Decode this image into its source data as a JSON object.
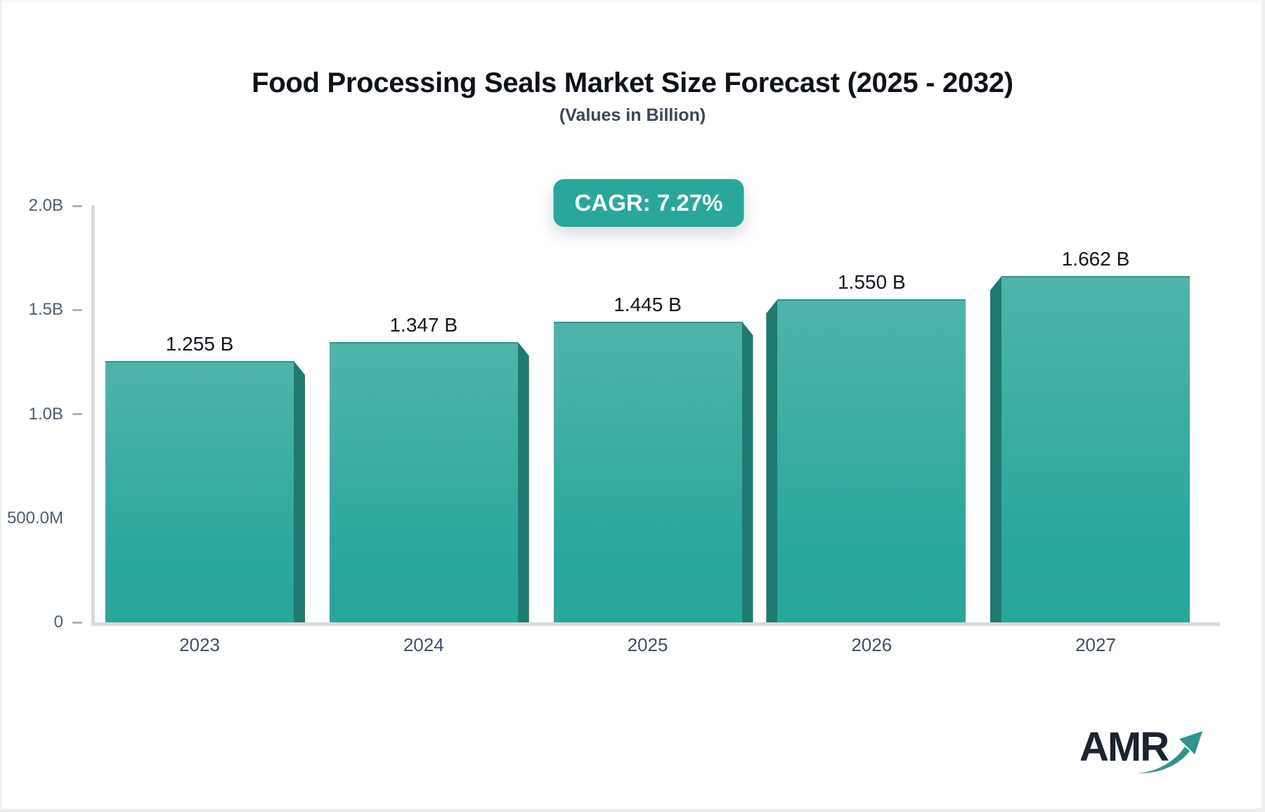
{
  "header": {
    "title": "Food Processing Seals Market Size Forecast (2025 - 2032)",
    "subtitle": "(Values in Billion)"
  },
  "badge": {
    "label": "CAGR: 7.27%",
    "cagr_percent": 7.27
  },
  "logo": {
    "text": "AMR",
    "arrow_icon": "growth-arrow-icon"
  },
  "colors": {
    "badge_teal": "#2aa79b",
    "bar_face_top": "#4fb4ab",
    "bar_face_bottom": "#29a69a",
    "bar_bevel_dark": "#1f7a72",
    "axis_line": "#d7dade",
    "tick_dash": "#a9b2bb",
    "axis_label": "#4c5e6f",
    "x_label": "#3f5168",
    "value_label": "#10161d",
    "title_text": "#0d1218",
    "subtitle_text": "#3c4756",
    "logo_text": "#1a232e",
    "logo_arrow": "#2e948c"
  },
  "chart_data": {
    "type": "bar",
    "title": "Food Processing Seals Market Size Forecast (2025 - 2032)",
    "subtitle": "(Values in Billion)",
    "unit": "Billion USD",
    "cagr_label": "CAGR: 7.27%",
    "categories": [
      "2023",
      "2024",
      "2025",
      "2026",
      "2027"
    ],
    "values": [
      1.255,
      1.347,
      1.445,
      1.55,
      1.662
    ],
    "value_labels": [
      "1.255 B",
      "1.347 B",
      "1.445 B",
      "1.550 B",
      "1.662 B"
    ],
    "ylim": [
      0,
      2.0
    ],
    "yticks": [
      {
        "label": "2.0B",
        "value": 2.0,
        "tick": true
      },
      {
        "label": "1.5B",
        "value": 1.5,
        "tick": true
      },
      {
        "label": "1.0B",
        "value": 1.0,
        "tick": true
      },
      {
        "label": "500.0M",
        "value": 0.5,
        "tick": false
      },
      {
        "label": "0",
        "value": 0.0,
        "tick": true
      }
    ],
    "grid": false,
    "legend": "none",
    "bar_style": "3d-bevel",
    "bevel_sides": [
      "right",
      "right",
      "right",
      "left",
      "left"
    ]
  }
}
